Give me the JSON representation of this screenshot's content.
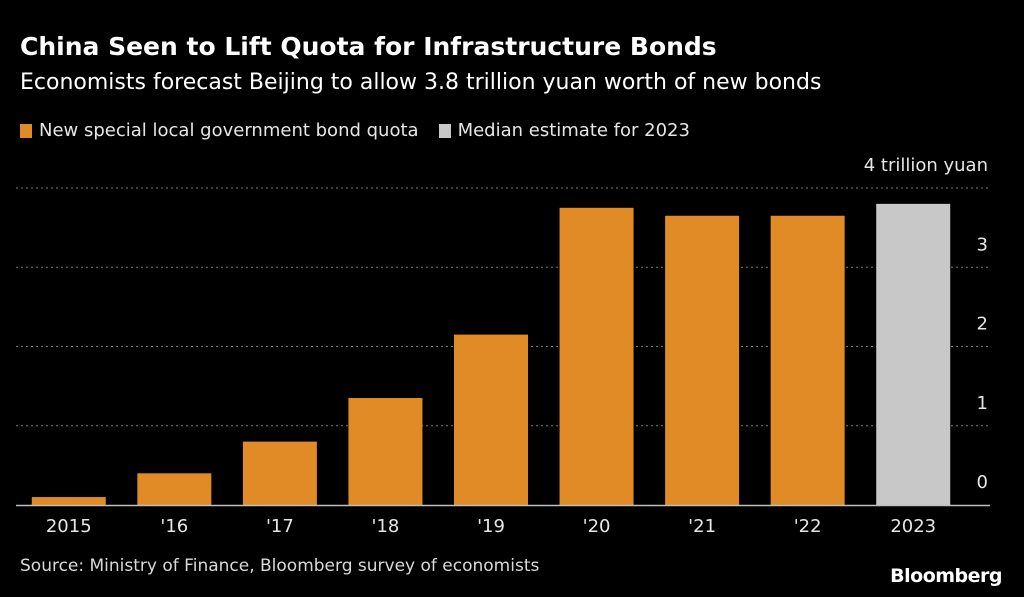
{
  "header": {
    "title": "China Seen to Lift Quota for Infrastructure Bonds",
    "subtitle": "Economists forecast Beijing to allow 3.8 trillion yuan worth of new bonds"
  },
  "legend": [
    {
      "label": "New special local government bond quota",
      "color": "#e08b25"
    },
    {
      "label": "Median estimate for 2023",
      "color": "#c8c8c8"
    }
  ],
  "footer": {
    "source": "Source: Ministry of Finance, Bloomberg survey of economists",
    "brand": "Bloomberg"
  },
  "chart_data": {
    "type": "bar",
    "categories": [
      "2015",
      "'16",
      "'17",
      "'18",
      "'19",
      "'20",
      "'21",
      "'22",
      "2023"
    ],
    "values": [
      0.1,
      0.4,
      0.8,
      1.35,
      2.15,
      3.75,
      3.65,
      3.65,
      3.8
    ],
    "bar_colors": [
      "#e08b25",
      "#e08b25",
      "#e08b25",
      "#e08b25",
      "#e08b25",
      "#e08b25",
      "#e08b25",
      "#e08b25",
      "#c8c8c8"
    ],
    "ylim": [
      0,
      4
    ],
    "yticks": [
      "0",
      "1",
      "2",
      "3",
      "4 trillion yuan"
    ],
    "axis_position": "right",
    "grid": true
  }
}
